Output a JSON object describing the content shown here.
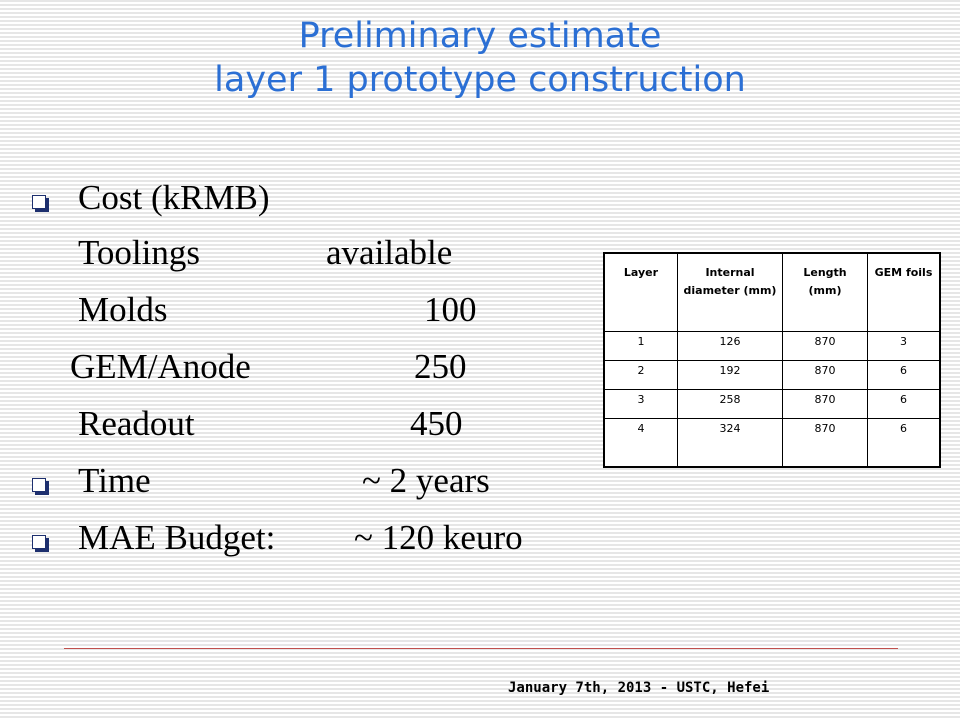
{
  "title": {
    "line1": "Preliminary estimate",
    "line2": "layer 1 prototype construction"
  },
  "bullets": [
    {
      "label": "Cost (kRMB)",
      "bullet": true
    },
    {
      "label": "Toolings",
      "value": "available",
      "bullet": false
    },
    {
      "label": "Molds",
      "value": "100",
      "bullet": false
    },
    {
      "label": "GEM/Anode",
      "value": "250",
      "bullet": false
    },
    {
      "label": "Readout",
      "value": "450",
      "bullet": false
    },
    {
      "label": "Time",
      "value": "~ 2 years",
      "bullet": true
    },
    {
      "label": "MAE Budget:",
      "value": "~ 120 keuro",
      "bullet": true
    }
  ],
  "table": {
    "headers": [
      "Layer",
      "Internal diameter (mm)",
      "Length (mm)",
      "GEM foils"
    ],
    "rows": [
      [
        "1",
        "126",
        "870",
        "3"
      ],
      [
        "2",
        "192",
        "870",
        "6"
      ],
      [
        "3",
        "258",
        "870",
        "6"
      ],
      [
        "4",
        "324",
        "870",
        "6"
      ]
    ]
  },
  "colors": {
    "title": "#2b6fd4",
    "bullet": "#1d2f6e",
    "rule": "#c0504d"
  },
  "footer": "January 7th, 2013 - USTC, Hefei"
}
